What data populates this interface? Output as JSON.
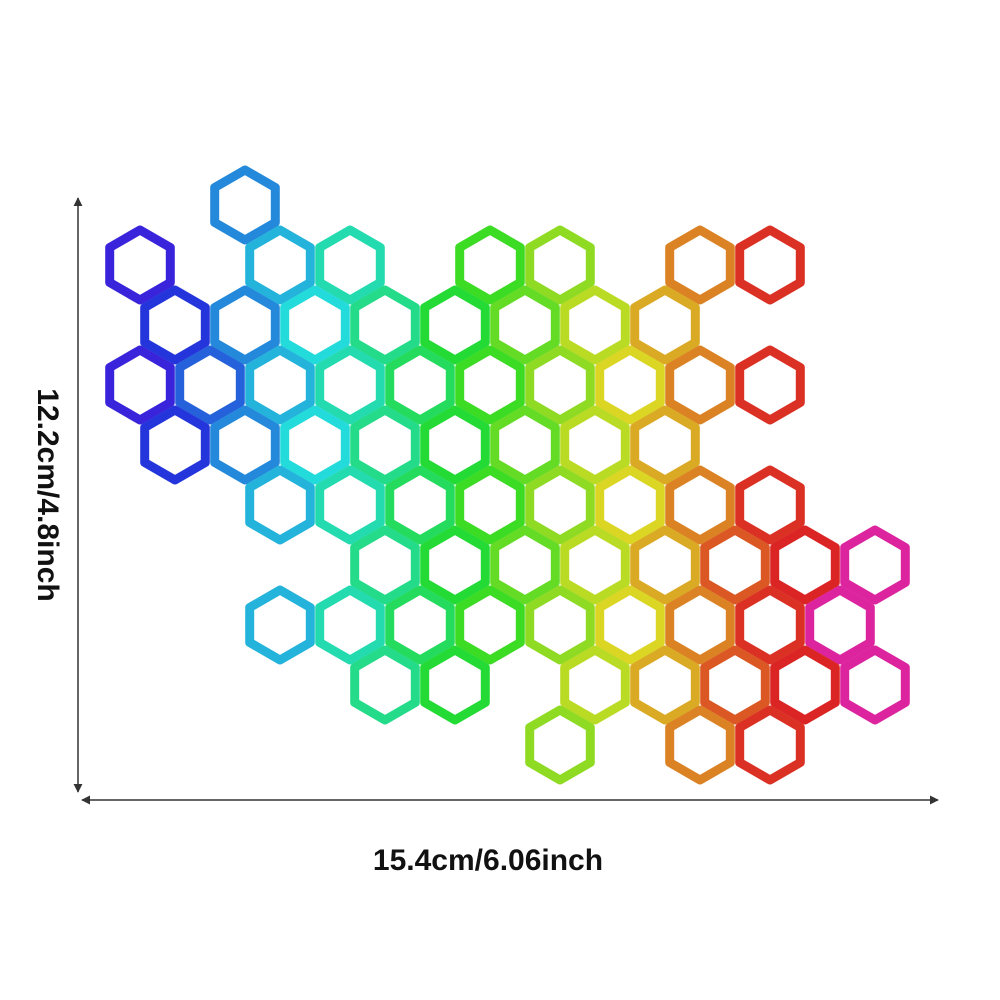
{
  "dimensions": {
    "height": "12.2cm/4.8inch",
    "width": "15.4cm/6.06inch"
  }
}
